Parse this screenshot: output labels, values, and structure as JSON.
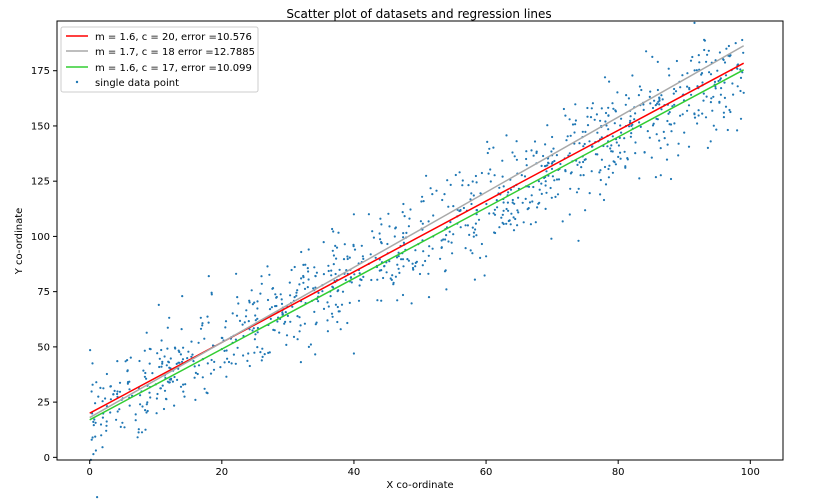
{
  "chart_data": {
    "type": "scatter",
    "title": "Scatter plot of datasets and regression lines",
    "xlabel": "X co-ordinate",
    "ylabel": "Y co-ordinate",
    "xlim": [
      -4.95,
      104.95
    ],
    "ylim": [
      -1.2,
      197.5
    ],
    "xticks": [
      0,
      20,
      40,
      60,
      80,
      100
    ],
    "yticks": [
      0,
      25,
      50,
      75,
      100,
      125,
      150,
      175
    ],
    "grid": false,
    "legend_position": "top-left",
    "scatter": {
      "name": "single data point",
      "color": "#1f77b4",
      "count": 1000,
      "x_range": [
        0,
        99
      ],
      "approx_trend": {
        "m": 1.6,
        "c": 18.5
      },
      "noise_std": 11,
      "points_sample": [
        [
          0.3,
          8
        ],
        [
          1,
          34
        ],
        [
          2,
          18
        ],
        [
          2.5,
          12
        ],
        [
          4,
          17
        ],
        [
          6,
          27
        ],
        [
          8,
          23
        ],
        [
          10,
          33
        ],
        [
          12,
          43
        ],
        [
          14,
          73
        ],
        [
          16,
          26
        ],
        [
          18,
          61
        ],
        [
          20,
          49
        ],
        [
          24,
          47
        ],
        [
          26,
          82
        ],
        [
          30,
          64
        ],
        [
          32,
          81
        ],
        [
          34,
          86
        ],
        [
          36,
          62
        ],
        [
          38,
          58
        ],
        [
          40,
          110
        ],
        [
          40,
          47
        ],
        [
          44,
          108
        ],
        [
          46,
          79
        ],
        [
          50,
          83
        ],
        [
          52,
          100
        ],
        [
          54,
          76
        ],
        [
          56,
          129
        ],
        [
          58,
          104
        ],
        [
          60,
          91
        ],
        [
          62,
          122
        ],
        [
          64,
          138
        ],
        [
          66,
          117
        ],
        [
          68,
          125
        ],
        [
          70,
          145
        ],
        [
          72,
          130
        ],
        [
          74,
          98
        ],
        [
          76,
          158
        ],
        [
          78,
          172
        ],
        [
          80,
          136
        ],
        [
          82,
          150
        ],
        [
          84,
          138
        ],
        [
          86,
          179
        ],
        [
          88,
          126
        ],
        [
          90,
          147
        ],
        [
          92,
          168
        ],
        [
          93,
          189
        ],
        [
          94,
          143
        ],
        [
          95,
          175
        ],
        [
          96,
          154
        ],
        [
          97,
          182
        ],
        [
          98,
          148
        ],
        [
          99,
          165
        ]
      ]
    },
    "series": [
      {
        "name": "m = 1.6, c = 20, error =10.576",
        "m": 1.6,
        "c": 20,
        "x": [
          0,
          99
        ],
        "color": "#ff0000"
      },
      {
        "name": "m = 1.7, c = 18 error =12.7885",
        "m": 1.7,
        "c": 18,
        "x": [
          0,
          99
        ],
        "color": "#a9a9a9"
      },
      {
        "name": "m = 1.6, c = 17, error =10.099",
        "m": 1.6,
        "c": 17,
        "x": [
          0,
          99
        ],
        "color": "#32cd32"
      }
    ]
  }
}
